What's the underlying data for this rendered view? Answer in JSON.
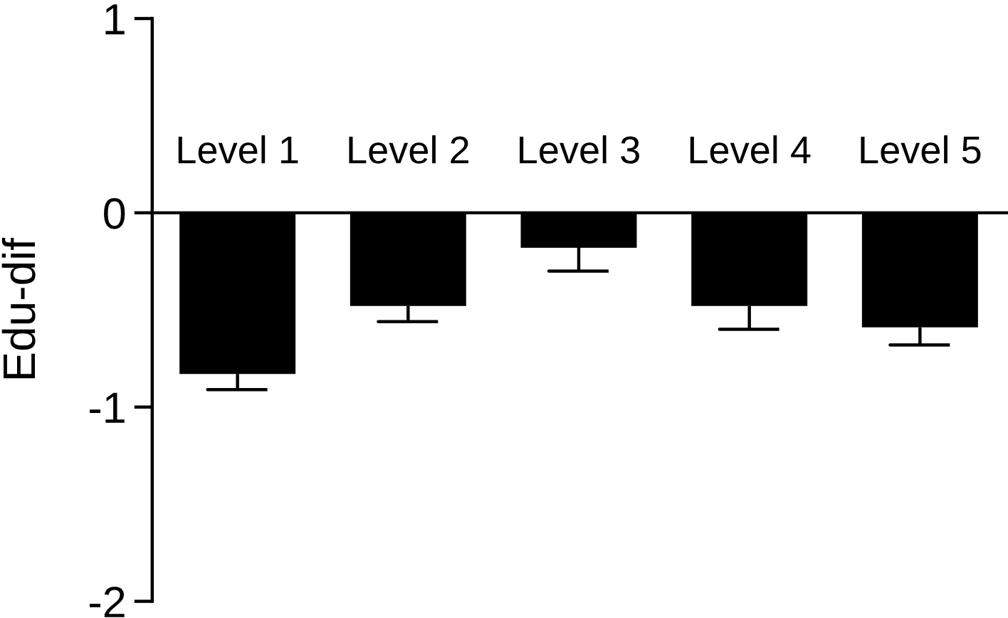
{
  "chart_data": {
    "type": "bar",
    "categories": [
      "Level 1",
      "Level 2",
      "Level 3",
      "Level 4",
      "Level 5"
    ],
    "values": [
      -0.83,
      -0.48,
      -0.18,
      -0.48,
      -0.59
    ],
    "color": "#000000",
    "errors": [
      [
        -0.91,
        -0.83
      ],
      [
        -0.56,
        -0.48
      ],
      [
        -0.3,
        -0.18
      ],
      [
        -0.6,
        -0.48
      ],
      [
        -0.68,
        -0.59
      ]
    ],
    "ylabel": "Edu-dif",
    "ylim": [
      -2,
      1
    ],
    "yticks": [
      -2,
      -1,
      0,
      1
    ]
  }
}
